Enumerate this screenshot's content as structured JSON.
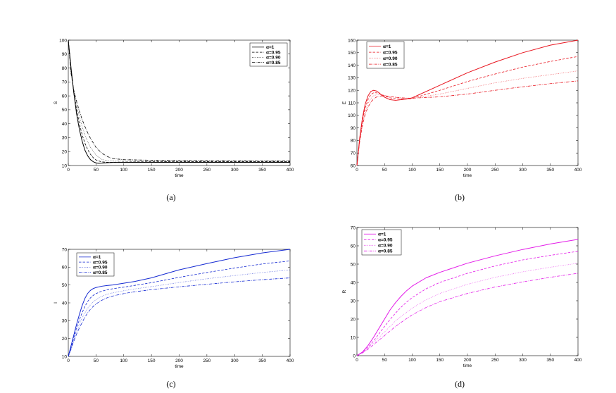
{
  "chart_data": [
    {
      "type": "line",
      "caption": "(a)",
      "xlabel": "time",
      "ylabel": "S",
      "xlim": [
        0,
        400
      ],
      "ylim": [
        10,
        100
      ],
      "xticks": [
        0,
        50,
        100,
        150,
        200,
        250,
        300,
        350,
        400
      ],
      "yticks": [
        10,
        20,
        30,
        40,
        50,
        60,
        70,
        80,
        90,
        100
      ],
      "grid": false,
      "legend_position": "top-right",
      "color": "#000000",
      "series": [
        {
          "name": "α=1",
          "style": "solid",
          "x": [
            0,
            5,
            10,
            15,
            20,
            25,
            30,
            35,
            40,
            45,
            50,
            55,
            60,
            70,
            80,
            100,
            150,
            200,
            300,
            400
          ],
          "y": [
            100,
            80,
            62,
            47,
            36,
            27.5,
            21,
            17,
            14.2,
            12.7,
            11.9,
            11.6,
            11.7,
            12,
            12.2,
            12.3,
            12.3,
            12.3,
            12.3,
            12.3
          ]
        },
        {
          "name": "α=0.95",
          "style": "dashed",
          "x": [
            0,
            5,
            10,
            15,
            20,
            25,
            30,
            35,
            40,
            45,
            50,
            60,
            70,
            80,
            100,
            150,
            200,
            300,
            400
          ],
          "y": [
            100,
            78,
            62,
            50,
            40,
            32,
            26,
            21.5,
            18,
            15.6,
            14,
            12.6,
            12.3,
            12.3,
            12.5,
            12.7,
            12.8,
            12.8,
            12.8
          ]
        },
        {
          "name": "α=0.90",
          "style": "dotted",
          "x": [
            0,
            5,
            10,
            15,
            20,
            25,
            30,
            35,
            40,
            50,
            60,
            70,
            80,
            100,
            150,
            200,
            300,
            400
          ],
          "y": [
            100,
            77,
            63,
            53,
            45,
            38,
            32,
            27,
            23,
            17.5,
            14.5,
            13.5,
            13.2,
            13.2,
            13.3,
            13.3,
            13.3,
            13.3
          ]
        },
        {
          "name": "α=0.85",
          "style": "dashdot",
          "x": [
            0,
            5,
            10,
            15,
            20,
            25,
            30,
            35,
            40,
            50,
            60,
            70,
            80,
            100,
            150,
            200,
            300,
            400
          ],
          "y": [
            100,
            76,
            64,
            56,
            49,
            43,
            38,
            33.5,
            29.5,
            23,
            19,
            16.5,
            15,
            14.2,
            13.8,
            13.6,
            13.4,
            13.3
          ]
        }
      ]
    },
    {
      "type": "line",
      "caption": "(b)",
      "xlabel": "time",
      "ylabel": "E",
      "xlim": [
        0,
        400
      ],
      "ylim": [
        60,
        160
      ],
      "xticks": [
        0,
        50,
        100,
        150,
        200,
        250,
        300,
        350,
        400
      ],
      "yticks": [
        60,
        70,
        80,
        90,
        100,
        110,
        120,
        130,
        140,
        150,
        160
      ],
      "grid": false,
      "legend_position": "top-left",
      "color": "#e8141e",
      "series": [
        {
          "name": "α=1",
          "style": "solid",
          "x": [
            0,
            5,
            10,
            15,
            20,
            25,
            30,
            35,
            40,
            45,
            50,
            60,
            70,
            80,
            90,
            100,
            150,
            200,
            250,
            300,
            350,
            400
          ],
          "y": [
            60,
            82,
            98,
            109,
            115.5,
            119,
            120,
            119.5,
            118,
            116,
            114.5,
            112.5,
            112,
            112.5,
            113,
            114,
            124,
            134,
            142.5,
            150,
            156,
            160
          ]
        },
        {
          "name": "α=0.95",
          "style": "dashed",
          "x": [
            0,
            5,
            10,
            15,
            20,
            25,
            30,
            35,
            40,
            45,
            50,
            60,
            70,
            80,
            90,
            100,
            150,
            200,
            250,
            300,
            350,
            400
          ],
          "y": [
            60,
            81,
            96,
            106,
            112.5,
            116.5,
            118,
            118,
            117.5,
            116.5,
            115.5,
            114,
            113.3,
            113,
            113,
            113.5,
            120,
            127,
            133,
            138.5,
            143,
            147
          ]
        },
        {
          "name": "α=0.90",
          "style": "dotted",
          "x": [
            0,
            5,
            10,
            15,
            20,
            25,
            30,
            35,
            40,
            45,
            50,
            60,
            70,
            80,
            90,
            100,
            150,
            200,
            250,
            300,
            350,
            400
          ],
          "y": [
            60,
            80,
            94,
            103,
            109.5,
            113.5,
            115.5,
            116.5,
            116.8,
            116.5,
            116,
            115,
            114.3,
            113.8,
            113.5,
            113.5,
            117,
            121.5,
            126,
            129.5,
            132.5,
            135.5
          ]
        },
        {
          "name": "α=0.85",
          "style": "dashdot",
          "x": [
            0,
            5,
            10,
            15,
            20,
            25,
            30,
            35,
            40,
            45,
            50,
            60,
            70,
            80,
            90,
            100,
            150,
            200,
            250,
            300,
            350,
            400
          ],
          "y": [
            60,
            79,
            92,
            101,
            106.5,
            110.5,
            113,
            114.5,
            115.3,
            115.5,
            115.5,
            115,
            114.5,
            114,
            113.8,
            113.7,
            114.8,
            117,
            120,
            122.8,
            125.3,
            127.5
          ]
        }
      ]
    },
    {
      "type": "line",
      "caption": "(c)",
      "xlabel": "time",
      "ylabel": "I",
      "xlim": [
        0,
        400
      ],
      "ylim": [
        10,
        70
      ],
      "xticks": [
        0,
        50,
        100,
        150,
        200,
        250,
        300,
        350,
        400
      ],
      "yticks": [
        10,
        20,
        30,
        40,
        50,
        60,
        70
      ],
      "grid": false,
      "legend_position": "top-left",
      "color": "#1429d2",
      "series": [
        {
          "name": "α=1",
          "style": "solid",
          "x": [
            0,
            5,
            10,
            15,
            20,
            25,
            30,
            35,
            40,
            45,
            50,
            60,
            70,
            80,
            100,
            120,
            150,
            200,
            250,
            300,
            350,
            400
          ],
          "y": [
            10,
            16,
            22,
            28,
            33.5,
            38.5,
            42.5,
            45.3,
            47,
            48,
            48.6,
            49.3,
            49.7,
            50,
            51,
            52,
            54,
            58.5,
            62,
            65.3,
            68,
            70
          ]
        },
        {
          "name": "α=0.95",
          "style": "dashed",
          "x": [
            0,
            5,
            10,
            15,
            20,
            25,
            30,
            35,
            40,
            45,
            50,
            60,
            70,
            80,
            100,
            120,
            150,
            200,
            250,
            300,
            350,
            400
          ],
          "y": [
            10,
            15,
            20.5,
            26,
            30.5,
            34.5,
            38,
            40.8,
            42.8,
            44.2,
            45.2,
            46.5,
            47.3,
            47.9,
            48.8,
            49.8,
            51.3,
            54.3,
            57,
            59.5,
            61.8,
            63.5
          ]
        },
        {
          "name": "α=0.90",
          "style": "dotted",
          "x": [
            0,
            5,
            10,
            15,
            20,
            25,
            30,
            35,
            40,
            45,
            50,
            60,
            70,
            80,
            100,
            120,
            150,
            200,
            250,
            300,
            350,
            400
          ],
          "y": [
            10,
            14.5,
            19.5,
            24,
            28,
            31.5,
            34.5,
            37,
            39,
            40.6,
            41.8,
            43.6,
            44.8,
            45.6,
            46.8,
            47.8,
            49.1,
            51.4,
            53.5,
            55.3,
            57,
            58.5
          ]
        },
        {
          "name": "α=0.85",
          "style": "dashdot",
          "x": [
            0,
            5,
            10,
            15,
            20,
            25,
            30,
            35,
            40,
            45,
            50,
            60,
            70,
            80,
            100,
            120,
            150,
            200,
            250,
            300,
            350,
            400
          ],
          "y": [
            10,
            14,
            18.5,
            22.5,
            26,
            29,
            32,
            34.4,
            36.4,
            38,
            39.4,
            41.4,
            42.8,
            43.8,
            45.2,
            46.2,
            47.4,
            49,
            50.4,
            51.8,
            53,
            54
          ]
        }
      ]
    },
    {
      "type": "line",
      "caption": "(d)",
      "xlabel": "time",
      "ylabel": "R",
      "xlim": [
        0,
        400
      ],
      "ylim": [
        0,
        70
      ],
      "xticks": [
        0,
        50,
        100,
        150,
        200,
        250,
        300,
        350,
        400
      ],
      "yticks": [
        0,
        10,
        20,
        30,
        40,
        50,
        60,
        70
      ],
      "grid": false,
      "legend_position": "top-left",
      "color": "#e31ae8",
      "series": [
        {
          "name": "α=1",
          "style": "solid",
          "x": [
            0,
            10,
            20,
            30,
            40,
            50,
            60,
            70,
            80,
            90,
            100,
            125,
            150,
            200,
            250,
            300,
            350,
            400
          ],
          "y": [
            0,
            2,
            5.5,
            10,
            15,
            20,
            25,
            29,
            32.5,
            35.5,
            38,
            42.5,
            45.5,
            50.5,
            54.5,
            58,
            61,
            63.5
          ]
        },
        {
          "name": "α=0.95",
          "style": "dashed",
          "x": [
            0,
            10,
            20,
            30,
            40,
            50,
            60,
            70,
            80,
            90,
            100,
            125,
            150,
            200,
            250,
            300,
            350,
            400
          ],
          "y": [
            0,
            1.8,
            4.5,
            8,
            12,
            16,
            19.8,
            23.3,
            26.5,
            29.3,
            31.7,
            36.5,
            40,
            45,
            49,
            52.3,
            54.8,
            57
          ]
        },
        {
          "name": "α=0.90",
          "style": "dotted",
          "x": [
            0,
            10,
            20,
            30,
            40,
            50,
            60,
            70,
            80,
            90,
            100,
            125,
            150,
            200,
            250,
            300,
            350,
            400
          ],
          "y": [
            0,
            1.6,
            4,
            7,
            10,
            13,
            16,
            19,
            21.5,
            23.8,
            26,
            30.5,
            34,
            39,
            42.8,
            45.8,
            48.3,
            50.5
          ]
        },
        {
          "name": "α=0.85",
          "style": "dashdot",
          "x": [
            0,
            10,
            20,
            30,
            40,
            50,
            60,
            70,
            80,
            90,
            100,
            125,
            150,
            200,
            250,
            300,
            350,
            400
          ],
          "y": [
            0,
            1.5,
            3.5,
            6,
            8.5,
            11,
            13.5,
            16,
            18.2,
            20.3,
            22.3,
            26.3,
            29.5,
            34,
            37.5,
            40.3,
            42.8,
            45
          ]
        }
      ]
    }
  ]
}
